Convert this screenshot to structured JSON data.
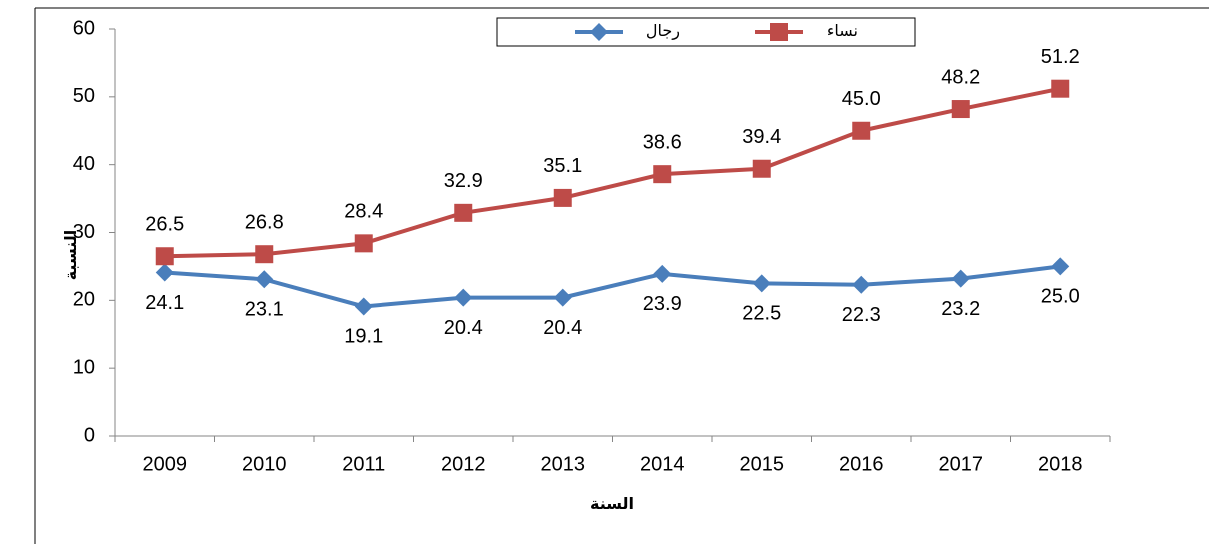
{
  "chart_data": {
    "type": "line",
    "ylabel": "النسبة",
    "xlabel": "السنة",
    "categories": [
      "2009",
      "2010",
      "2011",
      "2012",
      "2013",
      "2014",
      "2015",
      "2016",
      "2017",
      "2018"
    ],
    "series": [
      {
        "name": "رجال",
        "color": "#4a7ebb",
        "marker": "diamond",
        "values": [
          24.1,
          23.1,
          19.1,
          20.4,
          20.4,
          23.9,
          22.5,
          22.3,
          23.2,
          25.0
        ],
        "value_labels": [
          "24.1",
          "23.1",
          "19.1",
          "20.4",
          "20.4",
          "23.9",
          "22.5",
          "22.3",
          "23.2",
          "25.0"
        ]
      },
      {
        "name": "نساء",
        "color": "#be4b48",
        "marker": "square",
        "values": [
          26.5,
          26.8,
          28.4,
          32.9,
          35.1,
          38.6,
          39.4,
          45.0,
          48.2,
          51.2
        ],
        "value_labels": [
          "26.5",
          "26.8",
          "28.4",
          "32.9",
          "35.1",
          "38.6",
          "39.4",
          "45.0",
          "48.2",
          "51.2"
        ]
      }
    ],
    "ylim": [
      0,
      60
    ],
    "yticks": [
      0,
      10,
      20,
      30,
      40,
      50,
      60
    ]
  }
}
